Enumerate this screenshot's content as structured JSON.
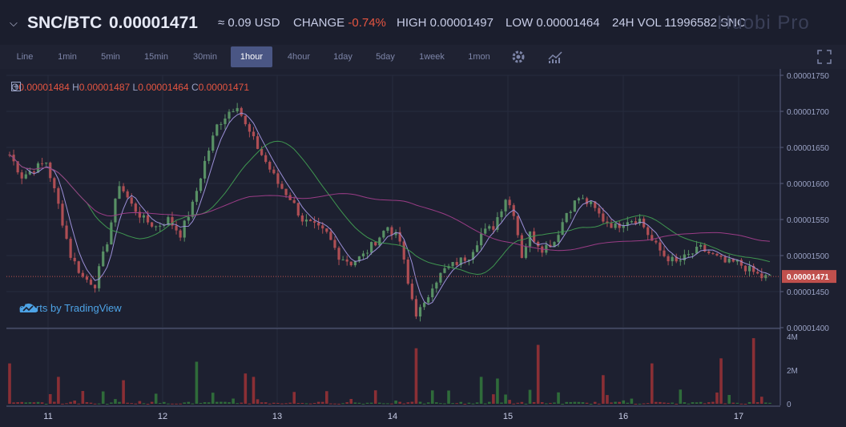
{
  "header": {
    "chevron": "⌵",
    "pair": "SNC/BTC",
    "price": "0.00001471",
    "usd": "≈ 0.09 USD",
    "change_label": "CHANGE",
    "change_value": "-0.74%",
    "high": "HIGH 0.00001497",
    "low": "LOW 0.00001464",
    "volume": "24H VOL 11996582 SNC",
    "brand": "Huobi Pro"
  },
  "toolbar": {
    "timeframes": [
      "Line",
      "1min",
      "5min",
      "15min",
      "30min",
      "1hour",
      "4hour",
      "1day",
      "5day",
      "1week",
      "1mon"
    ],
    "active": "1hour",
    "icons": [
      "gear-icon",
      "indicator-icon",
      "fullscreen-icon"
    ]
  },
  "legend": {
    "o_label": "O",
    "o": "0.00001484",
    "h_label": "H",
    "h": "0.00001487",
    "l_label": "L",
    "l": "0.00001464",
    "c_label": "C",
    "c": "0.00001471"
  },
  "attribution": "charts by TradingView",
  "colors": {
    "up": "#589065",
    "down": "#ae4e54",
    "ma1": "#9c90d8",
    "ma2": "#3f9650",
    "ma3": "#9a3c86",
    "last_price": "#c0504d"
  },
  "chart_data": {
    "type": "candlestick",
    "price_axis": {
      "min": 1.4e-05,
      "max": 1.75e-05,
      "ticks": [
        "0.00001400",
        "0.00001450",
        "0.00001500",
        "0.00001550",
        "0.00001600",
        "0.00001650",
        "0.00001700",
        "0.00001750"
      ]
    },
    "volume_axis": {
      "max": 4000000,
      "ticks": [
        "0",
        "2M",
        "4M"
      ]
    },
    "x_ticks": [
      "11",
      "12",
      "13",
      "14",
      "15",
      "16",
      "17"
    ],
    "last_price": "0.00001471",
    "key_points": [
      [
        0,
        1.0000164
      ],
      [
        3,
        1.0000161
      ],
      [
        6,
        1.0000162
      ],
      [
        9,
        1.0000163
      ],
      [
        12,
        1.0000157
      ],
      [
        15,
        1.000015
      ],
      [
        18,
        1.0000147
      ],
      [
        21,
        1.0000146
      ],
      [
        24,
        1.0000152
      ],
      [
        27,
        1.000016
      ],
      [
        30,
        1.0000157
      ],
      [
        33,
        1.0000155
      ],
      [
        36,
        1.0000154
      ],
      [
        39,
        1.0000155
      ],
      [
        42,
        1.0000153
      ],
      [
        45,
        1.0000157
      ],
      [
        48,
        1.0000163
      ],
      [
        51,
        1.0000168
      ],
      [
        54,
        1.000017
      ],
      [
        56,
        1.0000171
      ],
      [
        58,
        1.0000168
      ],
      [
        60,
        1.0000166
      ],
      [
        63,
        1.0000163
      ],
      [
        66,
        1.000016
      ],
      [
        69,
        1.0000158
      ],
      [
        72,
        1.0000155
      ],
      [
        75,
        1.0000154
      ],
      [
        78,
        1.0000153
      ],
      [
        81,
        1.000015
      ],
      [
        84,
        1.0000149
      ],
      [
        87,
        1.000015
      ],
      [
        90,
        1.0000152
      ],
      [
        93,
        1.0000154
      ],
      [
        96,
        1.0000152
      ],
      [
        98,
        1.0000146
      ],
      [
        100,
        1.0000142
      ],
      [
        102,
        1.0000143
      ],
      [
        104,
        1.0000146
      ],
      [
        107,
        1.0000148
      ],
      [
        110,
        1.0000149
      ],
      [
        113,
        1.000015
      ],
      [
        116,
        1.0000153
      ],
      [
        119,
        1.0000154
      ],
      [
        122,
        1.0000158
      ],
      [
        124,
        1.0000156
      ],
      [
        126,
        1.000015
      ],
      [
        128,
        1.0000153
      ],
      [
        131,
        1.0000151
      ],
      [
        134,
        1.0000152
      ],
      [
        137,
        1.0000156
      ],
      [
        140,
        1.0000158
      ],
      [
        143,
        1.0000157
      ],
      [
        146,
        1.0000155
      ],
      [
        149,
        1.0000154
      ],
      [
        152,
        1.0000155
      ],
      [
        155,
        1.0000155
      ],
      [
        158,
        1.0000152
      ],
      [
        161,
        1.000015
      ],
      [
        164,
        1.0000149
      ],
      [
        167,
        1.000015
      ],
      [
        170,
        1.0000151
      ],
      [
        173,
        1.000015
      ],
      [
        176,
        1.0000149
      ],
      [
        179,
        1.0000149
      ],
      [
        182,
        1.0000148
      ],
      [
        185,
        1.0000147
      ]
    ],
    "volume_spikes": [
      [
        0,
        2400000
      ],
      [
        12,
        1600000
      ],
      [
        28,
        1400000
      ],
      [
        36,
        600000
      ],
      [
        46,
        2500000
      ],
      [
        58,
        1800000
      ],
      [
        60,
        1600000
      ],
      [
        90,
        800000
      ],
      [
        100,
        3300000
      ],
      [
        116,
        1600000
      ],
      [
        120,
        1500000
      ],
      [
        130,
        3500000
      ],
      [
        146,
        1700000
      ],
      [
        158,
        2400000
      ],
      [
        175,
        2700000
      ],
      [
        183,
        3900000
      ]
    ],
    "moving_averages": [
      "ma1",
      "ma2",
      "ma3"
    ]
  }
}
